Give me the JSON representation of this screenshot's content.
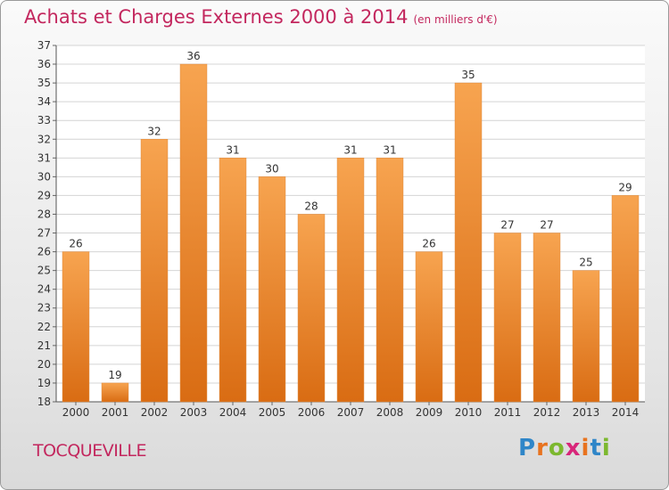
{
  "header": {
    "title": "Achats et Charges Externes 2000 à 2014",
    "subtitle": "(en milliers d'€)"
  },
  "footer": {
    "commune": "TOCQUEVILLE",
    "brand_letters": [
      "P",
      "r",
      "o",
      "x",
      "i",
      "t",
      "i"
    ],
    "brand_colors": [
      "#2f86c8",
      "#e8731f",
      "#7cb82f",
      "#d8267a",
      "#e8731f",
      "#2f86c8",
      "#7cb82f"
    ]
  },
  "colors": {
    "bar_top": "#f7a450",
    "bar_bottom": "#d96c13",
    "title": "#c3275e"
  },
  "chart_data": {
    "type": "bar",
    "categories": [
      "2000",
      "2001",
      "2002",
      "2003",
      "2004",
      "2005",
      "2006",
      "2007",
      "2008",
      "2009",
      "2010",
      "2011",
      "2012",
      "2013",
      "2014"
    ],
    "values": [
      26,
      19,
      32,
      36,
      31,
      30,
      28,
      31,
      31,
      26,
      35,
      27,
      27,
      25,
      29
    ],
    "title": "Achats et Charges Externes 2000 à 2014",
    "xlabel": "",
    "ylabel": "",
    "ylim": [
      18,
      37
    ],
    "yticks": [
      18,
      19,
      20,
      21,
      22,
      23,
      24,
      25,
      26,
      27,
      28,
      29,
      30,
      31,
      32,
      33,
      34,
      35,
      36,
      37
    ],
    "grid": true
  }
}
